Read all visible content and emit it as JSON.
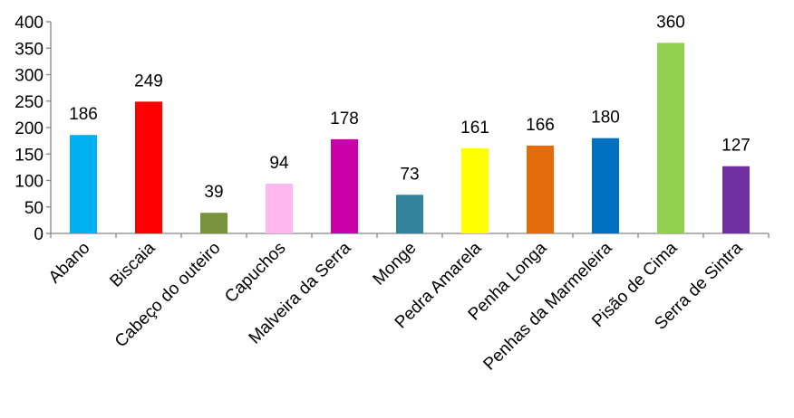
{
  "chart_data": {
    "type": "bar",
    "title": "",
    "xlabel": "",
    "ylabel": "",
    "ylim": [
      0,
      400
    ],
    "yticks": [
      0,
      50,
      100,
      150,
      200,
      250,
      300,
      350,
      400
    ],
    "grid": false,
    "legend": "none",
    "categories": [
      "Abano",
      "Biscaia",
      "Cabeço do outeiro",
      "Capuchos",
      "Malveira da Serra",
      "Monge",
      "Pedra Amarela",
      "Penha Longa",
      "Penhas da Marmeleira",
      "Pisão de Cima",
      "Serra de Sintra"
    ],
    "values": [
      186,
      249,
      39,
      94,
      178,
      73,
      161,
      166,
      180,
      360,
      127
    ],
    "colors": [
      "#00b0f0",
      "#ff0000",
      "#77933c",
      "#ffb7ef",
      "#cc00aa",
      "#31849b",
      "#ffff00",
      "#e46c0a",
      "#0070c0",
      "#92d050",
      "#7030a0"
    ],
    "axis_color": "#868686"
  }
}
